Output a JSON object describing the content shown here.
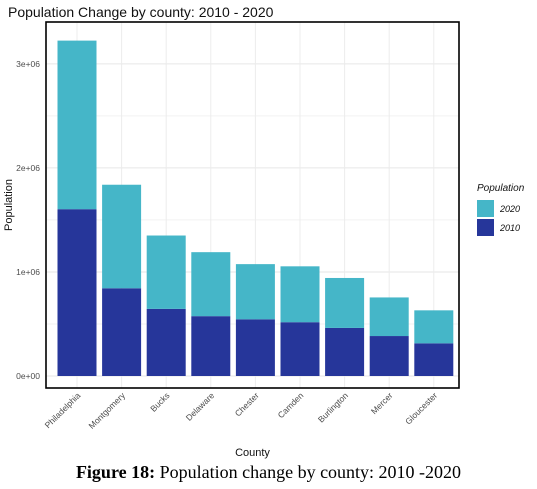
{
  "chart_data": {
    "type": "bar",
    "stacked": true,
    "title": "Population Change by county: 2010 - 2020",
    "xlabel": "County",
    "ylabel": "Population",
    "categories": [
      "Philadelphia",
      "Montgomery",
      "Bucks",
      "Delaware",
      "Chester",
      "Camden",
      "Burlington",
      "Mercer",
      "Gloucester"
    ],
    "series": [
      {
        "name": "2010",
        "color": "#26369a",
        "values": [
          1603000,
          843000,
          645000,
          575000,
          545000,
          517000,
          462000,
          384000,
          314000
        ]
      },
      {
        "name": "2020",
        "color": "#45b6c8",
        "values": [
          1620000,
          995000,
          705000,
          615000,
          530000,
          537000,
          480000,
          371000,
          317000
        ]
      }
    ],
    "legend": {
      "title": "Population",
      "position": "right",
      "entries": [
        "2020",
        "2010"
      ]
    },
    "yticks": [
      0,
      1000000,
      2000000,
      3000000
    ],
    "ytick_labels": [
      "0e+00",
      "1e+06",
      "2e+06",
      "3e+06"
    ],
    "ylim": [
      0,
      3300000
    ],
    "grid": true
  },
  "caption": {
    "prefix": "Figure 18:",
    "text": " Population change by county: 2010 -2020"
  }
}
